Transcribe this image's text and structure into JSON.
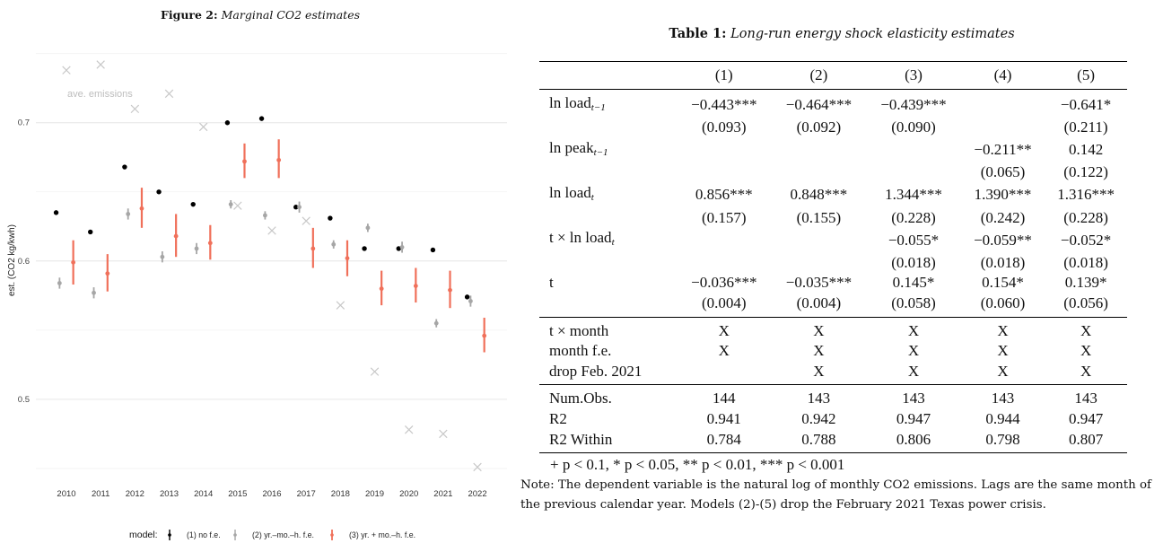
{
  "figure": {
    "label": "Figure 2:",
    "title": "Marginal CO2 estimates",
    "chart_data": {
      "type": "scatter",
      "ylabel": "est. (CO2 kg/kwh)",
      "ylim": [
        0.448,
        0.755
      ],
      "yticks": [
        0.5,
        0.6,
        0.7
      ],
      "ytick_labels": [
        "0.5",
        "0.6",
        "0.7"
      ],
      "categories": [
        "2010",
        "2011",
        "2012",
        "2013",
        "2014",
        "2015",
        "2016",
        "2017",
        "2018",
        "2019",
        "2020",
        "2021",
        "2022"
      ],
      "grid": true,
      "legend_title": "model:",
      "legend_position": "bottom",
      "annotation": "ave. emissions",
      "series": [
        {
          "name": "(1) no f.e.",
          "color": "#000000",
          "marker": "point",
          "values": [
            0.635,
            0.621,
            0.668,
            0.65,
            0.641,
            0.7,
            0.703,
            0.639,
            0.631,
            0.609,
            0.609,
            0.608,
            0.574
          ],
          "lower": [
            0.634,
            0.62,
            0.667,
            0.649,
            0.64,
            0.699,
            0.702,
            0.638,
            0.63,
            0.608,
            0.608,
            0.607,
            0.573
          ],
          "upper": [
            0.636,
            0.622,
            0.669,
            0.651,
            0.642,
            0.701,
            0.704,
            0.64,
            0.632,
            0.61,
            0.61,
            0.609,
            0.575
          ]
        },
        {
          "name": "(2) yr.–mo.–h. f.e.",
          "color": "#a6a6a6",
          "marker": "point",
          "values": [
            0.584,
            0.577,
            0.634,
            0.603,
            0.609,
            0.641,
            0.633,
            0.639,
            0.612,
            0.624,
            0.61,
            0.555,
            0.571
          ],
          "lower": [
            0.58,
            0.573,
            0.63,
            0.599,
            0.605,
            0.638,
            0.63,
            0.635,
            0.609,
            0.621,
            0.606,
            0.552,
            0.567
          ],
          "upper": [
            0.588,
            0.581,
            0.638,
            0.607,
            0.613,
            0.644,
            0.636,
            0.643,
            0.615,
            0.627,
            0.614,
            0.558,
            0.575
          ]
        },
        {
          "name": "(3) yr. + mo.–h. f.e.",
          "color": "#f0705a",
          "marker": "point",
          "values": [
            0.599,
            0.591,
            0.638,
            0.618,
            0.613,
            0.672,
            0.673,
            0.609,
            0.602,
            0.58,
            0.582,
            0.579,
            0.546
          ],
          "lower": [
            0.583,
            0.578,
            0.624,
            0.603,
            0.601,
            0.66,
            0.66,
            0.595,
            0.589,
            0.568,
            0.57,
            0.566,
            0.534
          ],
          "upper": [
            0.615,
            0.605,
            0.653,
            0.634,
            0.626,
            0.685,
            0.688,
            0.624,
            0.615,
            0.593,
            0.595,
            0.593,
            0.559
          ]
        },
        {
          "name": "ave. emissions",
          "color": "#c8c8c8",
          "marker": "x",
          "values": [
            0.738,
            0.742,
            0.71,
            0.721,
            0.697,
            0.64,
            0.622,
            0.629,
            0.568,
            0.52,
            0.478,
            0.475,
            0.451
          ]
        }
      ]
    }
  },
  "table": {
    "label": "Table 1:",
    "title": "Long-run energy shock elasticity estimates",
    "columns": [
      "(1)",
      "(2)",
      "(3)",
      "(4)",
      "(5)"
    ],
    "coef_rows": [
      {
        "base": "ln load",
        "sub": "t−1",
        "values": [
          "−0.443***",
          "−0.464***",
          "−0.439***",
          "",
          "−0.641*"
        ],
        "se": [
          "(0.093)",
          "(0.092)",
          "(0.090)",
          "",
          "(0.211)"
        ]
      },
      {
        "base": "ln peak",
        "sub": "t−1",
        "values": [
          "",
          "",
          "",
          "−0.211**",
          "0.142"
        ],
        "se": [
          "",
          "",
          "",
          "(0.065)",
          "(0.122)"
        ]
      },
      {
        "base": "ln load",
        "sub": "t",
        "values": [
          "0.856***",
          "0.848***",
          "1.344***",
          "1.390***",
          "1.316***"
        ],
        "se": [
          "(0.157)",
          "(0.155)",
          "(0.228)",
          "(0.242)",
          "(0.228)"
        ]
      },
      {
        "base": "t × ln load",
        "sub": "t",
        "values": [
          "",
          "",
          "−0.055*",
          "−0.059**",
          "−0.052*"
        ],
        "se": [
          "",
          "",
          "(0.018)",
          "(0.018)",
          "(0.018)"
        ]
      },
      {
        "base": "t",
        "sub": "",
        "values": [
          "−0.036***",
          "−0.035***",
          "0.145*",
          "0.154*",
          "0.139*"
        ],
        "se": [
          "(0.004)",
          "(0.004)",
          "(0.058)",
          "(0.060)",
          "(0.056)"
        ]
      }
    ],
    "fe_rows": [
      {
        "label": "t × month",
        "values": [
          "X",
          "X",
          "X",
          "X",
          "X"
        ]
      },
      {
        "label": "month f.e.",
        "values": [
          "X",
          "X",
          "X",
          "X",
          "X"
        ]
      },
      {
        "label": "drop Feb. 2021",
        "values": [
          "",
          "X",
          "X",
          "X",
          "X"
        ]
      }
    ],
    "stat_rows": [
      {
        "label": "Num.Obs.",
        "values": [
          "144",
          "143",
          "143",
          "143",
          "143"
        ]
      },
      {
        "label": "R2",
        "values": [
          "0.941",
          "0.942",
          "0.947",
          "0.944",
          "0.947"
        ]
      },
      {
        "label": "R2 Within",
        "values": [
          "0.784",
          "0.788",
          "0.806",
          "0.798",
          "0.807"
        ]
      }
    ],
    "footnote": "+ p < 0.1, * p < 0.05, ** p < 0.01, *** p < 0.001",
    "note": "Note: The dependent variable is the natural log of monthly CO2 emissions. Lags are the same month of the previous calendar year. Models (2)-(5) drop the February 2021 Texas power crisis."
  }
}
